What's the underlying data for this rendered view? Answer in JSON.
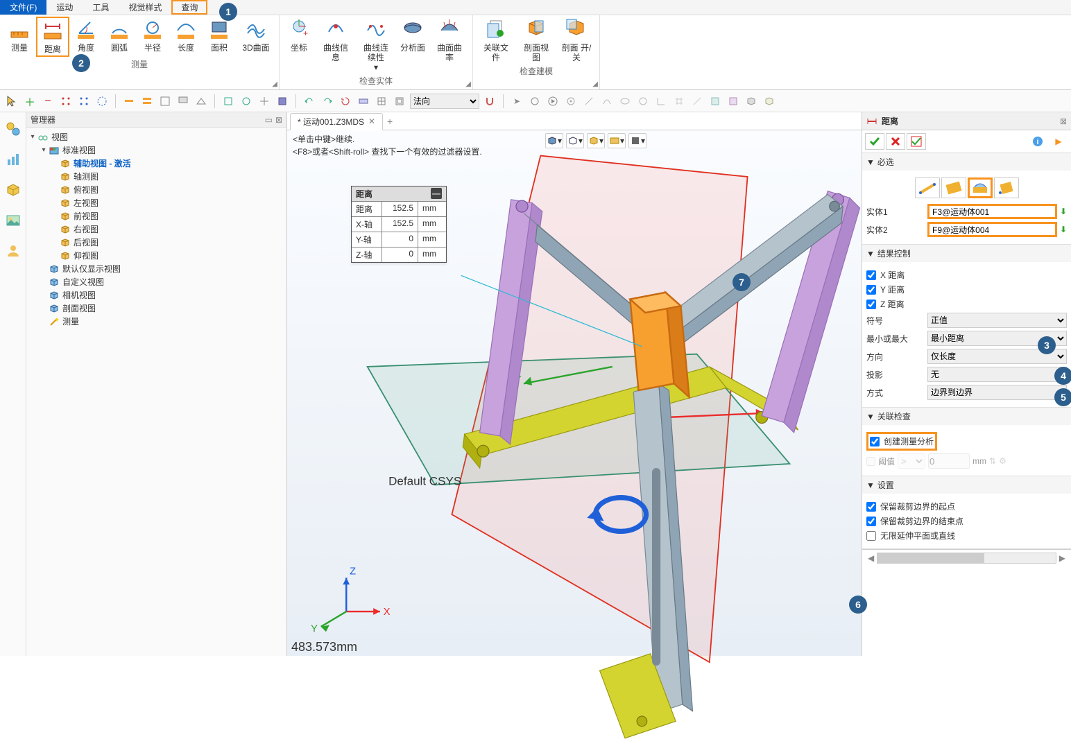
{
  "menu": {
    "items": [
      "文件(F)",
      "运动",
      "工具",
      "视觉样式",
      "查询"
    ],
    "active": 0,
    "highlight": 4
  },
  "ribbon": {
    "g0": {
      "title": "测量",
      "btns": [
        {
          "lbl": "测量",
          "icon": "measure"
        },
        {
          "lbl": "距离",
          "icon": "distance",
          "hl": true
        },
        {
          "lbl": "角度",
          "icon": "angle"
        },
        {
          "lbl": "圆弧",
          "icon": "arc"
        },
        {
          "lbl": "半径",
          "icon": "radius"
        },
        {
          "lbl": "长度",
          "icon": "length"
        },
        {
          "lbl": "面积",
          "icon": "area"
        },
        {
          "lbl": "3D曲面",
          "icon": "surf3d"
        }
      ]
    },
    "g1": {
      "title": "检查实体",
      "btns": [
        {
          "lbl": "坐标",
          "icon": "coord"
        },
        {
          "lbl": "曲线信息",
          "icon": "curveinfo"
        },
        {
          "lbl": "曲线连续性",
          "icon": "curvecont",
          "dd": true
        },
        {
          "lbl": "分析面",
          "icon": "analyzesurf"
        },
        {
          "lbl": "曲面曲率",
          "icon": "surfrate"
        }
      ]
    },
    "g2": {
      "title": "检查建模",
      "btns": [
        {
          "lbl": "关联文件",
          "icon": "linkfile"
        },
        {
          "lbl": "剖面视图",
          "icon": "sectview"
        },
        {
          "lbl": "剖面 开/关",
          "icon": "secttoggle"
        }
      ]
    }
  },
  "qtb": {
    "direction": "法向"
  },
  "tree": {
    "title": "管理器",
    "root": {
      "lbl": "视图",
      "icon": "glasses"
    },
    "std": {
      "lbl": "标准视图",
      "icon": "palette"
    },
    "items": [
      {
        "lbl": "辅助视图 - 激活",
        "icon": "iso",
        "active": true
      },
      {
        "lbl": "轴测图",
        "icon": "iso"
      },
      {
        "lbl": "俯视图",
        "icon": "iso"
      },
      {
        "lbl": "左视图",
        "icon": "iso"
      },
      {
        "lbl": "前视图",
        "icon": "iso"
      },
      {
        "lbl": "右视图",
        "icon": "iso"
      },
      {
        "lbl": "后视图",
        "icon": "iso"
      },
      {
        "lbl": "仰视图",
        "icon": "iso"
      }
    ],
    "extra": [
      {
        "lbl": "默认仅显示视图",
        "icon": "cube"
      },
      {
        "lbl": "自定义视图",
        "icon": "cube"
      },
      {
        "lbl": "相机视图",
        "icon": "cube"
      },
      {
        "lbl": "剖面视图",
        "icon": "cube"
      }
    ],
    "measure": {
      "lbl": "测量",
      "icon": "wand"
    }
  },
  "tab": {
    "label": "* 运动001.Z3MDS"
  },
  "viewport": {
    "hint1": "<单击中键>继续.",
    "hint2": "<F8>或者<Shift-roll> 查找下一个有效的过滤器设置.",
    "csys": "Default CSYS",
    "axes": {
      "x": "X",
      "y": "Y",
      "z": "Z"
    },
    "status": "483.573mm"
  },
  "meas": {
    "title": "距离",
    "rows": [
      {
        "k": "距离",
        "v": "152.5",
        "u": "mm"
      },
      {
        "k": "X-轴",
        "v": "152.5",
        "u": "mm"
      },
      {
        "k": "Y-轴",
        "v": "0",
        "u": "mm"
      },
      {
        "k": "Z-轴",
        "v": "0",
        "u": "mm"
      }
    ]
  },
  "panel": {
    "title": "距离",
    "sect_required": "必选",
    "entity1_lbl": "实体1",
    "entity1_val": "F3@运动体001",
    "entity2_lbl": "实体2",
    "entity2_val": "F9@运动体004",
    "sect_result": "结果控制",
    "chk_x": "X 距离",
    "chk_y": "Y 距离",
    "chk_z": "Z 距离",
    "sign_lbl": "符号",
    "sign_val": "正值",
    "minmax_lbl": "最小或最大",
    "minmax_val": "最小距离",
    "dir_lbl": "方向",
    "dir_val": "仅长度",
    "proj_lbl": "投影",
    "proj_val": "无",
    "mode_lbl": "方式",
    "mode_val": "边界到边界",
    "sect_assoc": "关联检查",
    "chk_create": "创建测量分析",
    "thresh_lbl": "阈值",
    "thresh_op": ">",
    "thresh_val": "0",
    "thresh_unit": "mm",
    "sect_settings": "设置",
    "chk_keep_start": "保留裁剪边界的起点",
    "chk_keep_end": "保留裁剪边界的结束点",
    "chk_infinite": "无限延伸平面或直线"
  },
  "badges": {
    "b1": "1",
    "b2": "2",
    "b3": "3",
    "b4": "4",
    "b5": "5",
    "b6": "6",
    "b7": "7"
  },
  "colors": {
    "accent": "#0b61c4",
    "hl": "#f7931e",
    "badge": "#2c5f8d",
    "purple": "#b88dd8",
    "olive": "#d4d430",
    "steel": "#8fa5b5",
    "orange": "#f7a030",
    "red": "#ec2b2b",
    "green": "#2aa52a",
    "blue": "#1f5fd8",
    "cyan": "#2cb9d6"
  }
}
